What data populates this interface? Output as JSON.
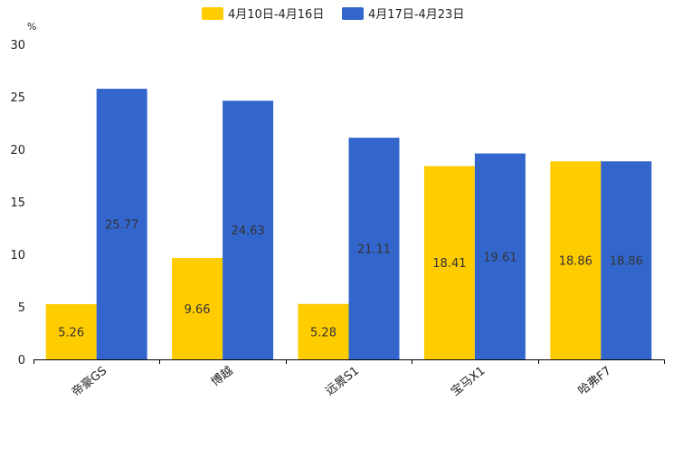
{
  "chart_data": {
    "type": "bar",
    "title": "",
    "xlabel": "",
    "ylabel": "%",
    "ylim": [
      0,
      30
    ],
    "yticks": [
      0,
      5,
      10,
      15,
      20,
      25,
      30
    ],
    "grid": false,
    "legend_position": "top-center",
    "categories": [
      "帝豪GS",
      "博越",
      "远景S1",
      "宝马X1",
      "哈弗F7"
    ],
    "series": [
      {
        "name": "4月10日-4月16日",
        "color": "#FFCC00",
        "values": [
          5.26,
          9.66,
          5.28,
          18.41,
          18.86
        ]
      },
      {
        "name": "4月17日-4月23日",
        "color": "#3366CC",
        "values": [
          25.77,
          24.63,
          21.11,
          19.61,
          18.86
        ]
      }
    ],
    "value_labels": [
      [
        "5.26",
        "9.66",
        "5.28",
        "18.41",
        "18.86"
      ],
      [
        "25.77",
        "24.63",
        "21.11",
        "19.61",
        "18.86"
      ]
    ]
  }
}
